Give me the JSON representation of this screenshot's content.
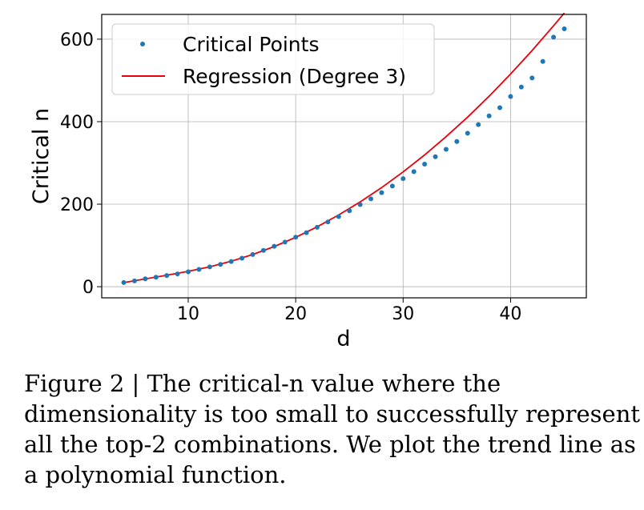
{
  "chart_data": {
    "type": "scatter",
    "xlabel": "d",
    "ylabel": "Critical n",
    "xlim": [
      1.95,
      47.05
    ],
    "ylim": [
      -27,
      660
    ],
    "xticks": [
      10,
      20,
      30,
      40
    ],
    "yticks": [
      0,
      200,
      400,
      600
    ],
    "grid": true,
    "legend_position": "top-left",
    "series": [
      {
        "name": "Critical Points",
        "kind": "scatter",
        "color": "#1f77b4",
        "x": [
          4,
          5,
          6,
          7,
          8,
          9,
          10,
          11,
          12,
          13,
          14,
          15,
          16,
          17,
          18,
          19,
          20,
          21,
          22,
          23,
          24,
          25,
          26,
          27,
          28,
          29,
          30,
          31,
          32,
          33,
          34,
          35,
          36,
          37,
          38,
          39,
          40,
          41,
          42,
          43,
          44,
          45
        ],
        "y": [
          10,
          14,
          19,
          23,
          27,
          31,
          36,
          42,
          48,
          54,
          61,
          69,
          78,
          88,
          98,
          108,
          120,
          131,
          144,
          157,
          170,
          184,
          199,
          213,
          228,
          244,
          262,
          279,
          297,
          315,
          333,
          352,
          372,
          393,
          414,
          434,
          461,
          484,
          506,
          546,
          605,
          625
        ]
      },
      {
        "name": "Regression (Degree 3)",
        "kind": "line",
        "color": "#e8000b",
        "x": [
          4,
          6,
          8,
          10,
          12,
          14,
          16,
          18,
          20,
          22,
          24,
          26,
          28,
          30,
          32,
          34,
          36,
          38,
          40,
          42,
          44,
          45
        ],
        "y": [
          9.8,
          18.8,
          27.8,
          37.3,
          48.3,
          61.7,
          78.0,
          97.3,
          119.7,
          145.2,
          173.8,
          205.5,
          240.3,
          278.3,
          319.4,
          363.7,
          411.1,
          461.7,
          515.5,
          572.4,
          632.5,
          663.5
        ]
      }
    ]
  },
  "caption": "Figure 2 | The critical-n value where the dimensionality is too small to successfully represent all the top-2 combinations. We plot the trend line as a polynomial function."
}
